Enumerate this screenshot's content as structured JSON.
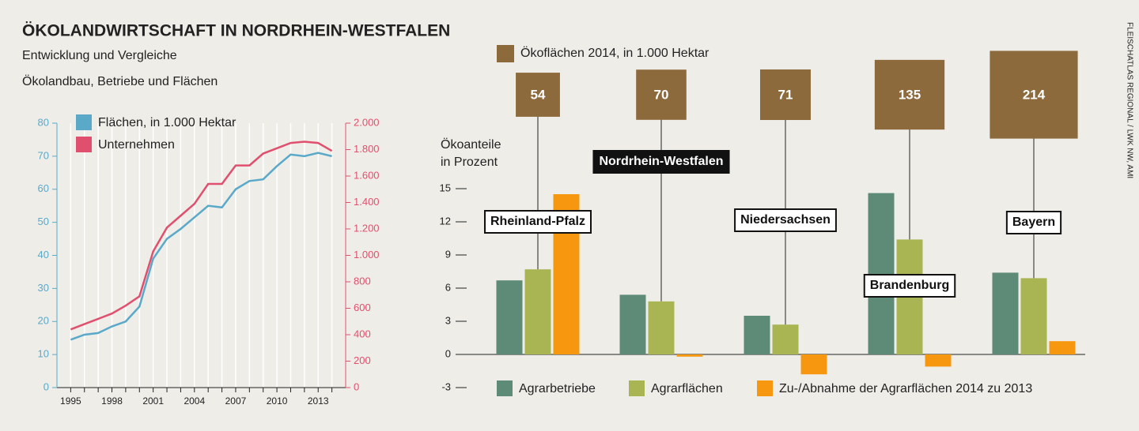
{
  "header": {
    "title": "ÖKOLANDWIRTSCHAFT IN NORDRHEIN-WESTFALEN",
    "subtitle": "Entwicklung und Vergleiche",
    "source": "FLEISCHATLAS REGIONAL / LWK NW, AMI"
  },
  "chart_data": [
    {
      "type": "line",
      "title": "Ökolandbau, Betriebe und Flächen",
      "x": [
        1995,
        1996,
        1997,
        1998,
        1999,
        2000,
        2001,
        2002,
        2003,
        2004,
        2005,
        2006,
        2007,
        2008,
        2009,
        2010,
        2011,
        2012,
        2013,
        2014
      ],
      "xlim": [
        1994,
        2015
      ],
      "xticks": [
        1995,
        1998,
        2001,
        2004,
        2007,
        2010,
        2013
      ],
      "ylim": [
        0,
        80
      ],
      "yticks": [
        0,
        10,
        20,
        30,
        40,
        50,
        60,
        70,
        80
      ],
      "y2lim": [
        0,
        2000
      ],
      "y2ticks": [
        0,
        200,
        400,
        600,
        800,
        {
          "value": 1000,
          "label": "1.000"
        },
        {
          "value": 1200,
          "label": "1.200"
        },
        {
          "value": 1400,
          "label": "1.400"
        },
        {
          "value": 1600,
          "label": "1.600"
        },
        {
          "value": 1800,
          "label": "1.800"
        },
        {
          "value": 2000,
          "label": "2.000"
        }
      ],
      "grid": true,
      "series": [
        {
          "name": "Flächen, in 1.000 Hektar",
          "color": "#5aa9c9",
          "values": [
            14.5,
            16,
            16.5,
            18.5,
            20,
            24.5,
            39,
            45,
            48,
            51.5,
            55,
            54.5,
            60,
            62.5,
            63,
            67,
            70.5,
            70,
            71,
            70
          ]
        },
        {
          "name": "Unternehmen",
          "color": "#e0506e",
          "axis": "y2",
          "values": [
            440,
            480,
            520,
            560,
            620,
            690,
            1030,
            1210,
            1300,
            1390,
            1540,
            1540,
            1680,
            1680,
            1770,
            1810,
            1850,
            1860,
            1850,
            1790
          ]
        }
      ]
    },
    {
      "type": "bar",
      "ylabel": [
        "Ökoanteile",
        "in Prozent"
      ],
      "categories": [
        "Rheinland-Pfalz",
        "Nordrhein-Westfalen",
        "Niedersachsen",
        "Brandenburg",
        "Bayern"
      ],
      "highlight_index": 1,
      "ylim": [
        -3,
        15
      ],
      "yticks": [
        -3,
        0,
        3,
        6,
        9,
        12,
        15
      ],
      "series": [
        {
          "name": "Agrarbetriebe",
          "color": "#5e8a78",
          "values": [
            6.7,
            5.4,
            3.5,
            14.6,
            7.4
          ]
        },
        {
          "name": "Agrarflächen",
          "color": "#a9b552",
          "values": [
            7.7,
            4.8,
            2.7,
            10.4,
            6.9
          ]
        },
        {
          "name": "Zu-/Abnahme der Agrarflächen 2014 zu 2013",
          "color": "#f7960f",
          "values": [
            14.5,
            -0.2,
            -1.8,
            -1.1,
            1.2
          ]
        }
      ],
      "area_label": "Ökoflächen 2014, in 1.000 Hektar",
      "area_color": "#8c6a3c",
      "area_values": [
        54,
        70,
        71,
        135,
        214
      ]
    }
  ]
}
